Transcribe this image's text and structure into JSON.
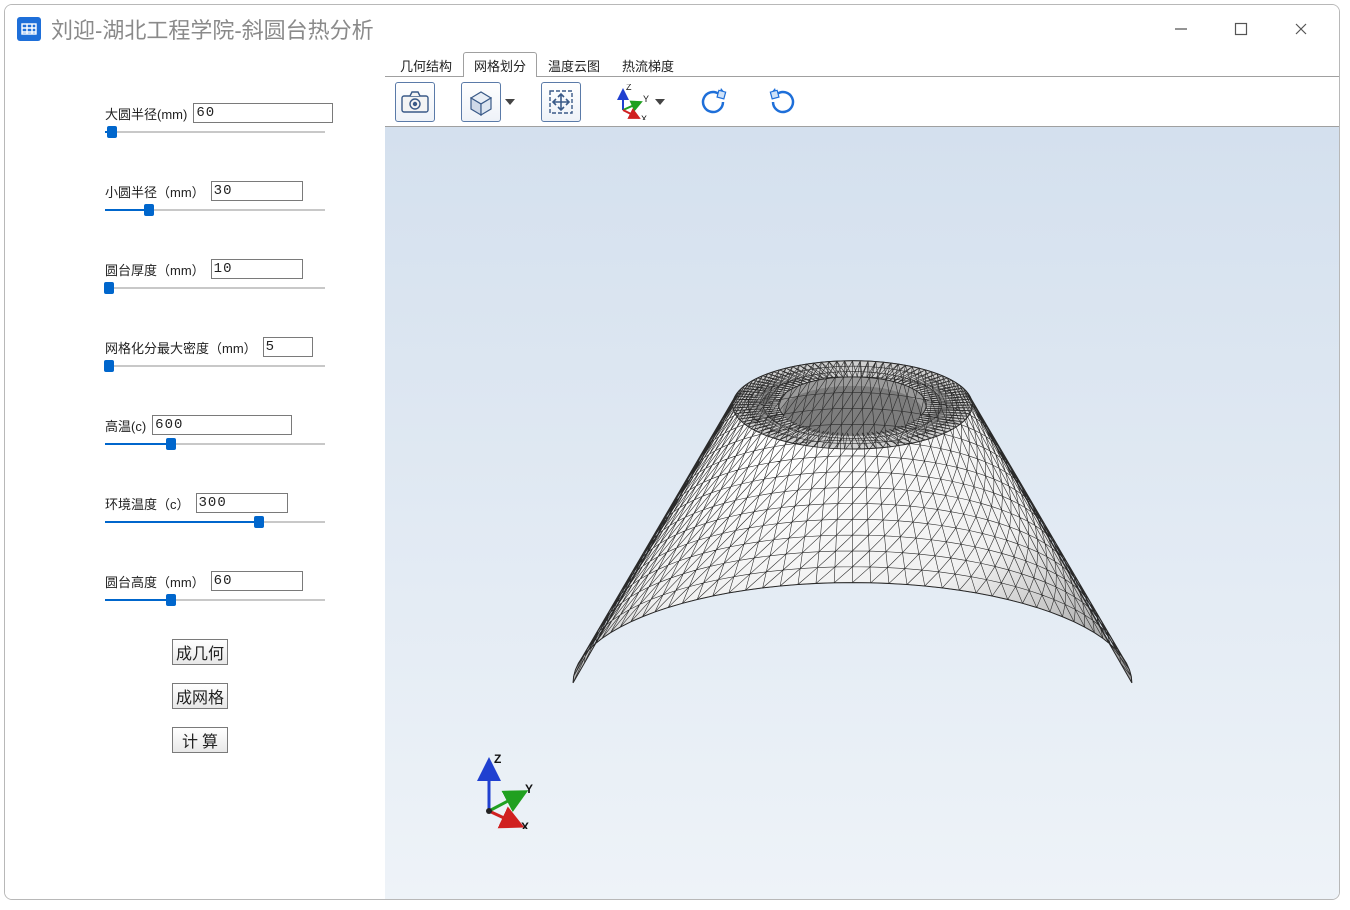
{
  "window": {
    "title": "刘迎-湖北工程学院-斜圆台热分析"
  },
  "sidebar": {
    "params": [
      {
        "label": "大圆半径(mm)",
        "value": "60",
        "slider_pct": 3,
        "input_class": "wide"
      },
      {
        "label": "小圆半径（mm）",
        "value": "30",
        "slider_pct": 20,
        "input_class": ""
      },
      {
        "label": "圆台厚度（mm）",
        "value": "10",
        "slider_pct": 2,
        "input_class": ""
      },
      {
        "label": "网格化分最大密度（mm）",
        "value": "5",
        "slider_pct": 2,
        "input_class": "narrow"
      },
      {
        "label": "高温(c)",
        "value": "600",
        "slider_pct": 30,
        "input_class": "wide"
      },
      {
        "label": "环境温度（c）",
        "value": "300",
        "slider_pct": 70,
        "input_class": ""
      },
      {
        "label": "圆台高度（mm）",
        "value": "60",
        "slider_pct": 30,
        "input_class": ""
      }
    ],
    "buttons": [
      {
        "label": "成几何"
      },
      {
        "label": "成网格"
      },
      {
        "label": "计 算"
      }
    ]
  },
  "tabs": {
    "items": [
      {
        "label": "几何结构",
        "active": false
      },
      {
        "label": "网格划分",
        "active": true
      },
      {
        "label": "温度云图",
        "active": false
      },
      {
        "label": "热流梯度",
        "active": false
      }
    ]
  },
  "toolbar": {
    "camera": "camera-icon",
    "cube": "cube-icon",
    "fit": "fit-icon",
    "axes": "axes-icon",
    "rotate_ccw": "rotate-ccw-icon",
    "rotate_cw": "rotate-cw-icon"
  },
  "viewport": {
    "bg_top": "#d4e0ee",
    "bg_bottom": "#eef3f8",
    "mesh": {
      "fill_light": "#f0f0f0",
      "fill_mid": "#cfcfcf",
      "fill_dark": "#9a9a9a",
      "line": "#2a2a2a",
      "line_width": 0.6
    },
    "axes": {
      "x_color": "#d02020",
      "y_color": "#20a020",
      "z_color": "#2040d0",
      "labels": {
        "x": "X",
        "y": "Y",
        "z": "Z"
      }
    },
    "toolbar_axes": {
      "x_color": "#d02020",
      "y_color": "#20a020",
      "z_color": "#2040d0",
      "labels": {
        "x": "X",
        "y": "Y",
        "z": "Z"
      }
    }
  }
}
